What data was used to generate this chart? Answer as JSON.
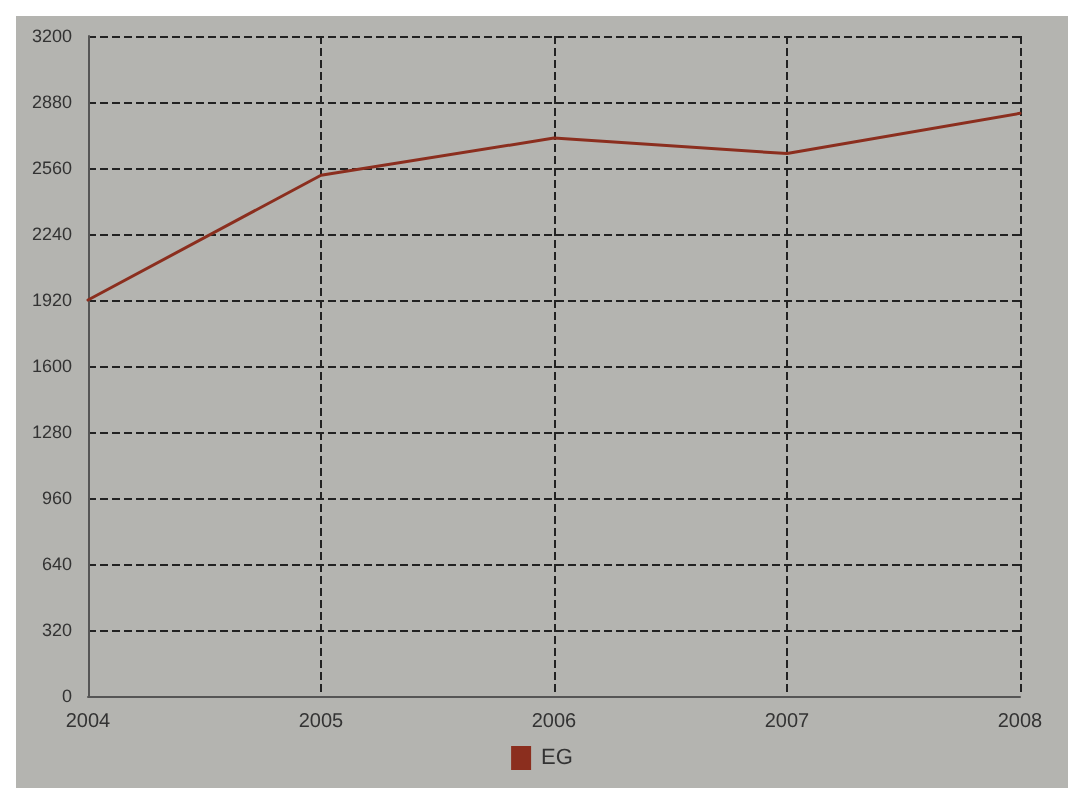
{
  "chart_data": {
    "type": "line",
    "categories": [
      "2004",
      "2005",
      "2006",
      "2007",
      "2008"
    ],
    "series": [
      {
        "name": "EG",
        "color": "#8b2e1e",
        "values": [
          1920,
          2525,
          2705,
          2630,
          2825
        ]
      }
    ],
    "ylim": [
      0,
      3200
    ],
    "yticks": [
      0,
      320,
      640,
      960,
      1280,
      1600,
      1920,
      2240,
      2560,
      2880,
      3200
    ],
    "grid": true,
    "legend": "bottom",
    "marker": "none",
    "line_style": "solid"
  }
}
